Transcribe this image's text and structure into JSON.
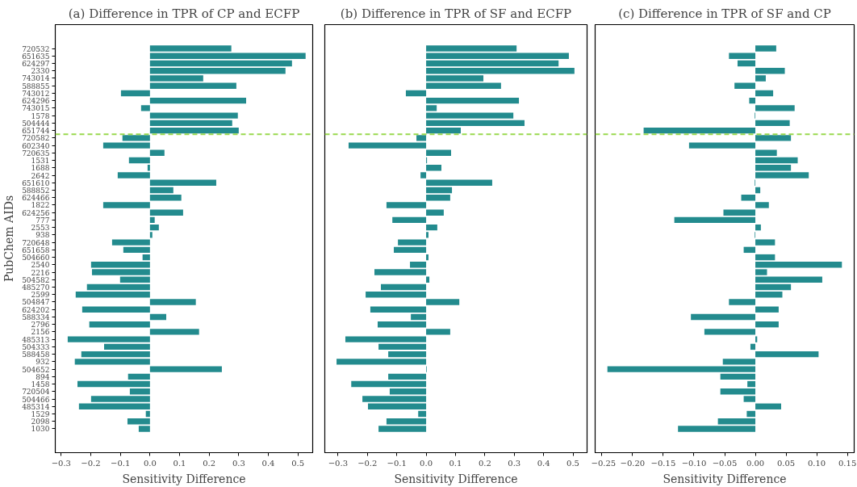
{
  "chart_data": [
    {
      "type": "bar",
      "orientation": "horizontal",
      "title": "(a) Difference in TPR of CP and ECFP",
      "xlabel": "Sensitivity Difference",
      "ylabel": "PubChem AIDs",
      "categories": [
        "720532",
        "651635",
        "624297",
        "2330",
        "743014",
        "588855",
        "743012",
        "624296",
        "743015",
        "1578",
        "504444",
        "651744",
        "720582",
        "602340",
        "720635",
        "1531",
        "1688",
        "2642",
        "651610",
        "588852",
        "624466",
        "1822",
        "624256",
        "777",
        "2553",
        "938",
        "720648",
        "651658",
        "504660",
        "2540",
        "2216",
        "504582",
        "485270",
        "2599",
        "504847",
        "624202",
        "588334",
        "2796",
        "2156",
        "485313",
        "504333",
        "588458",
        "932",
        "504652",
        "894",
        "1458",
        "720504",
        "504466",
        "485314",
        "1529",
        "2098",
        "1030"
      ],
      "values": [
        0.275,
        0.526,
        0.48,
        0.458,
        0.18,
        0.292,
        -0.098,
        0.325,
        -0.03,
        0.297,
        0.278,
        0.3,
        -0.093,
        -0.158,
        0.049,
        -0.071,
        -0.008,
        -0.109,
        0.224,
        0.079,
        0.106,
        -0.158,
        0.112,
        0.016,
        0.03,
        0.008,
        -0.128,
        -0.09,
        -0.025,
        -0.199,
        -0.196,
        -0.101,
        -0.213,
        -0.251,
        0.155,
        -0.229,
        0.055,
        -0.205,
        0.166,
        -0.278,
        -0.155,
        -0.232,
        -0.254,
        0.243,
        -0.074,
        -0.245,
        -0.068,
        -0.199,
        -0.24,
        -0.014,
        -0.076,
        -0.038
      ],
      "color": "#238b8e",
      "xlim": [
        -0.32,
        0.55
      ],
      "xticks": [
        {
          "value": -0.3,
          "label": "−0.3"
        },
        {
          "value": -0.2,
          "label": "−0.2"
        },
        {
          "value": -0.1,
          "label": "−0.1"
        },
        {
          "value": 0,
          "label": "0.0"
        },
        {
          "value": 0.1,
          "label": "0.1"
        },
        {
          "value": 0.2,
          "label": "0.2"
        },
        {
          "value": 0.3,
          "label": "0.3"
        },
        {
          "value": 0.4,
          "label": "0.4"
        },
        {
          "value": 0.5,
          "label": "0.5"
        }
      ],
      "ref_lines": [
        {
          "axis": "y",
          "value": "651744",
          "color": "#9ad94f",
          "line_style": "dashed"
        }
      ],
      "grid": false
    },
    {
      "type": "bar",
      "orientation": "horizontal",
      "title": "(b) Difference in TPR of SF and ECFP",
      "xlabel": "Sensitivity Difference",
      "categories": [
        "720532",
        "651635",
        "624297",
        "2330",
        "743014",
        "588855",
        "743012",
        "624296",
        "743015",
        "1578",
        "504444",
        "651744",
        "720582",
        "602340",
        "720635",
        "1531",
        "1688",
        "2642",
        "651610",
        "588852",
        "624466",
        "1822",
        "624256",
        "777",
        "2553",
        "938",
        "720648",
        "651658",
        "504660",
        "2540",
        "2216",
        "504582",
        "485270",
        "2599",
        "504847",
        "624202",
        "588334",
        "2796",
        "2156",
        "485313",
        "504333",
        "588458",
        "932",
        "504652",
        "894",
        "1458",
        "720504",
        "504466",
        "485314",
        "1529",
        "2098",
        "1030"
      ],
      "values": [
        0.308,
        0.486,
        0.451,
        0.505,
        0.195,
        0.255,
        -0.069,
        0.316,
        0.036,
        0.297,
        0.335,
        0.118,
        -0.033,
        -0.264,
        0.085,
        0.003,
        0.052,
        -0.019,
        0.225,
        0.088,
        0.082,
        -0.135,
        0.06,
        -0.115,
        0.038,
        0.008,
        -0.096,
        -0.11,
        0.008,
        -0.055,
        -0.176,
        0.011,
        -0.154,
        -0.206,
        0.113,
        -0.19,
        -0.052,
        -0.165,
        0.082,
        -0.275,
        -0.162,
        -0.129,
        -0.305,
        0.002,
        -0.129,
        -0.255,
        -0.124,
        -0.217,
        -0.198,
        -0.027,
        -0.135,
        -0.162
      ],
      "color": "#238b8e",
      "xlim": [
        -0.345,
        0.548
      ],
      "xticks": [
        {
          "value": -0.3,
          "label": "−0.3"
        },
        {
          "value": -0.2,
          "label": "−0.2"
        },
        {
          "value": -0.1,
          "label": "−0.1"
        },
        {
          "value": 0,
          "label": "0.0"
        },
        {
          "value": 0.1,
          "label": "0.1"
        },
        {
          "value": 0.2,
          "label": "0.2"
        },
        {
          "value": 0.3,
          "label": "0.3"
        },
        {
          "value": 0.4,
          "label": "0.4"
        },
        {
          "value": 0.5,
          "label": "0.5"
        }
      ],
      "ref_lines": [
        {
          "axis": "y",
          "value": "651744",
          "color": "#9ad94f",
          "line_style": "dashed"
        }
      ],
      "grid": false,
      "tick_labels": "x"
    },
    {
      "type": "bar",
      "orientation": "horizontal",
      "title": "(c) Difference in TPR of SF and CP",
      "xlabel": "Sensitivity Difference",
      "categories": [
        "720532",
        "651635",
        "624297",
        "2330",
        "743014",
        "588855",
        "743012",
        "624296",
        "743015",
        "1578",
        "504444",
        "651744",
        "720582",
        "602340",
        "720635",
        "1531",
        "1688",
        "2642",
        "651610",
        "588852",
        "624466",
        "1822",
        "624256",
        "777",
        "2553",
        "938",
        "720648",
        "651658",
        "504660",
        "2540",
        "2216",
        "504582",
        "485270",
        "2599",
        "504847",
        "624202",
        "588334",
        "2796",
        "2156",
        "485313",
        "504333",
        "588458",
        "932",
        "504652",
        "894",
        "1458",
        "720504",
        "504466",
        "485314",
        "1529",
        "2098",
        "1030"
      ],
      "values": [
        0.034,
        -0.043,
        -0.029,
        0.048,
        0.017,
        -0.034,
        0.029,
        -0.01,
        0.064,
        -0.001,
        0.056,
        -0.182,
        0.058,
        -0.108,
        0.035,
        0.069,
        0.058,
        0.087,
        -0.001,
        0.008,
        -0.023,
        0.022,
        -0.052,
        -0.132,
        0.009,
        -0.001,
        0.032,
        -0.019,
        0.032,
        0.141,
        0.019,
        0.109,
        0.058,
        0.044,
        -0.043,
        0.038,
        -0.105,
        0.038,
        -0.083,
        0.003,
        -0.008,
        0.103,
        -0.053,
        -0.241,
        -0.057,
        -0.013,
        -0.057,
        -0.019,
        0.042,
        -0.014,
        -0.061,
        -0.126
      ],
      "color": "#238b8e",
      "xlim": [
        -0.261,
        0.161
      ],
      "xticks": [
        {
          "value": -0.25,
          "label": "−0.25"
        },
        {
          "value": -0.2,
          "label": "−0.20"
        },
        {
          "value": -0.15,
          "label": "−0.15"
        },
        {
          "value": -0.1,
          "label": "−0.10"
        },
        {
          "value": -0.05,
          "label": "−0.05"
        },
        {
          "value": 0,
          "label": "0.00"
        },
        {
          "value": 0.05,
          "label": "0.05"
        },
        {
          "value": 0.1,
          "label": "0.10"
        },
        {
          "value": 0.15,
          "label": "0.15"
        }
      ],
      "ref_lines": [
        {
          "axis": "y",
          "value": "651744",
          "color": "#9ad94f",
          "line_style": "dashed"
        }
      ],
      "grid": false,
      "tick_labels": "x"
    }
  ]
}
